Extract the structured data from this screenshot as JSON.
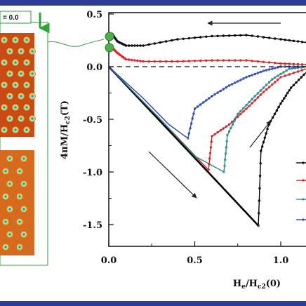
{
  "inset": {
    "label": "= 0.0"
  },
  "chart_data": {
    "type": "line",
    "title": "",
    "xlabel": "H_e/H_c2(0)",
    "ylabel": "4πM/H_c2(T)",
    "xlim": [
      0.0,
      1.15
    ],
    "ylim": [
      -1.7,
      0.55
    ],
    "x_ticks": [
      0.0,
      0.5,
      1.0
    ],
    "x_tick_labels": [
      "0.0",
      "0.5",
      "1.0"
    ],
    "y_ticks": [
      0.5,
      0.0,
      -0.5,
      -1.0,
      -1.5
    ],
    "y_tick_labels": [
      "0.5",
      "0.0",
      "-0.5",
      "-1.0",
      "-1.5"
    ],
    "zero_line": "dashed",
    "grid": false,
    "series": [
      {
        "color": "#000000",
        "up": [
          [
            0.0,
            0.0
          ],
          [
            0.3,
            -0.52
          ],
          [
            0.6,
            -1.04
          ],
          [
            0.87,
            -1.51
          ]
        ],
        "jump": [
          [
            0.87,
            -1.51
          ],
          [
            0.885,
            -0.8
          ],
          [
            0.93,
            -0.55
          ],
          [
            1.0,
            -0.35
          ],
          [
            1.06,
            -0.2
          ],
          [
            1.15,
            -0.05
          ]
        ],
        "down": [
          [
            1.15,
            0.23
          ],
          [
            1.0,
            0.26
          ],
          [
            0.8,
            0.3
          ],
          [
            0.6,
            0.29
          ],
          [
            0.4,
            0.26
          ],
          [
            0.2,
            0.2
          ],
          [
            0.1,
            0.2
          ],
          [
            0.05,
            0.24
          ],
          [
            0.02,
            0.31
          ],
          [
            0.0,
            0.32
          ]
        ]
      },
      {
        "color": "#d42020",
        "up": [
          [
            0.0,
            0.0
          ],
          [
            0.3,
            -0.5
          ],
          [
            0.58,
            -0.98
          ]
        ],
        "jump": [
          [
            0.58,
            -0.98
          ],
          [
            0.6,
            -0.66
          ],
          [
            0.7,
            -0.55
          ],
          [
            0.8,
            -0.4
          ],
          [
            0.9,
            -0.24
          ],
          [
            1.0,
            -0.1
          ],
          [
            1.15,
            -0.02
          ]
        ],
        "down": [
          [
            1.15,
            0.02
          ],
          [
            1.0,
            0.03
          ],
          [
            0.8,
            0.06
          ],
          [
            0.6,
            0.06
          ],
          [
            0.4,
            0.05
          ],
          [
            0.2,
            0.05
          ],
          [
            0.1,
            0.07
          ],
          [
            0.05,
            0.13
          ],
          [
            0.02,
            0.18
          ],
          [
            0.0,
            0.2
          ]
        ]
      },
      {
        "color": "#2a8a8a",
        "up": [
          [
            0.0,
            0.0
          ],
          [
            0.3,
            -0.5
          ],
          [
            0.5,
            -0.85
          ],
          [
            0.67,
            -1.0
          ]
        ],
        "jump": [
          [
            0.67,
            -1.0
          ],
          [
            0.69,
            -0.65
          ],
          [
            0.75,
            -0.45
          ],
          [
            0.85,
            -0.28
          ],
          [
            0.95,
            -0.12
          ],
          [
            1.05,
            -0.02
          ],
          [
            1.15,
            0.0
          ]
        ],
        "down": []
      },
      {
        "color": "#2a46b8",
        "up": [
          [
            0.0,
            0.0
          ],
          [
            0.2,
            -0.3
          ],
          [
            0.35,
            -0.55
          ],
          [
            0.46,
            -0.68
          ]
        ],
        "jump": [
          [
            0.46,
            -0.68
          ],
          [
            0.5,
            -0.4
          ],
          [
            0.6,
            -0.28
          ],
          [
            0.7,
            -0.18
          ],
          [
            0.8,
            -0.1
          ],
          [
            0.9,
            -0.04
          ],
          [
            1.0,
            0.0
          ],
          [
            1.15,
            0.0
          ]
        ],
        "down": []
      }
    ]
  }
}
